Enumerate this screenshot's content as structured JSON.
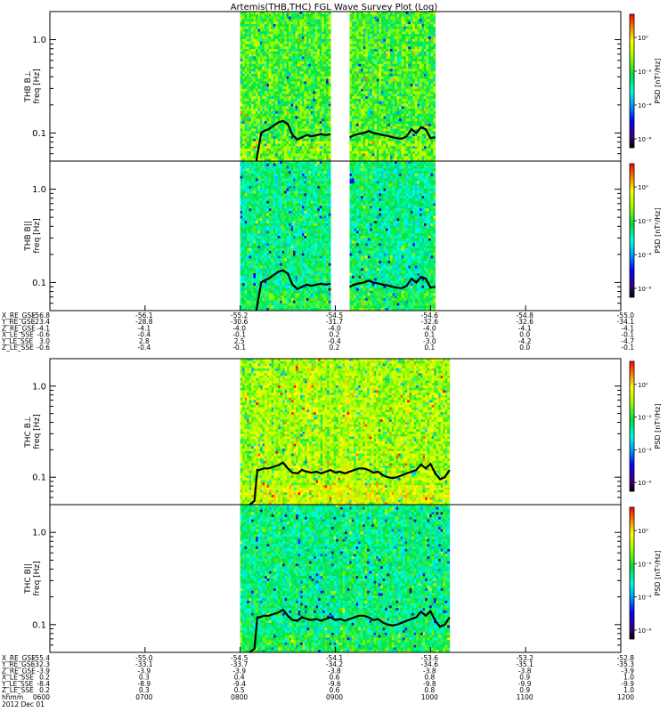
{
  "title": "Artemis(THB,THC) FGL Wave Survey Plot (Log)",
  "chart_data": {
    "type": "heatmap",
    "title": "Artemis(THB,THC) FGL Wave Survey Plot (Log)",
    "x_time_range_hours": [
      6,
      12
    ],
    "panels": [
      {
        "id": "thb-bperp",
        "ylabel": "THB B⊥",
        "yunit": "freq [Hz]",
        "ylim": [
          0.05,
          2.0
        ],
        "yscale": "log",
        "data_intervals": [
          [
            8.0,
            8.95
          ],
          [
            9.15,
            10.05
          ]
        ],
        "bg_level": 0.6,
        "line_level": 0.0
      },
      {
        "id": "thb-bpar",
        "ylabel": "THB B||",
        "yunit": "freq [Hz]",
        "ylim": [
          0.05,
          2.0
        ],
        "yscale": "log",
        "data_intervals": [
          [
            8.0,
            8.95
          ],
          [
            9.15,
            10.05
          ]
        ],
        "bg_level": 0.5,
        "line_level": 0.0
      },
      {
        "id": "thc-bperp",
        "ylabel": "THC B⊥",
        "yunit": "freq [Hz]",
        "ylim": [
          0.05,
          2.0
        ],
        "yscale": "log",
        "data_intervals": [
          [
            8.0,
            10.2
          ]
        ],
        "bg_level": 0.7,
        "line_level": 0.05
      },
      {
        "id": "thc-bpar",
        "ylabel": "THC B||",
        "yunit": "freq [Hz]",
        "ylim": [
          0.05,
          2.0
        ],
        "yscale": "log",
        "data_intervals": [
          [
            8.0,
            10.2
          ]
        ],
        "bg_level": 0.5,
        "line_level": 0.05
      }
    ],
    "thb_line": {
      "x": [
        8.17,
        8.2,
        8.22,
        8.25,
        8.3,
        8.35,
        8.4,
        8.45,
        8.5,
        8.55,
        8.6,
        8.65,
        8.7,
        8.75,
        8.8,
        8.85,
        8.9,
        8.95
      ],
      "y": [
        0.05,
        0.075,
        0.1,
        0.105,
        0.11,
        0.12,
        0.13,
        0.135,
        0.125,
        0.095,
        0.085,
        0.09,
        0.095,
        0.092,
        0.095,
        0.097,
        0.095,
        0.097
      ]
    },
    "thb_line2": {
      "x": [
        9.15,
        9.2,
        9.25,
        9.3,
        9.35,
        9.4,
        9.45,
        9.5,
        9.55,
        9.6,
        9.65,
        9.7,
        9.75,
        9.8,
        9.85,
        9.9,
        9.95,
        10.0,
        10.05
      ],
      "y": [
        0.09,
        0.095,
        0.098,
        0.1,
        0.105,
        0.1,
        0.098,
        0.095,
        0.093,
        0.09,
        0.088,
        0.087,
        0.092,
        0.11,
        0.1,
        0.115,
        0.11,
        0.088,
        0.09
      ]
    },
    "thc_line": {
      "x": [
        8.1,
        8.15,
        8.18,
        8.2,
        8.25,
        8.3,
        8.35,
        8.4,
        8.45,
        8.5,
        8.55,
        8.6,
        8.65,
        8.7,
        8.75,
        8.8,
        8.85,
        8.9,
        8.95,
        9.0,
        9.05,
        9.1,
        9.15,
        9.2,
        9.25,
        9.3,
        9.35,
        9.4,
        9.45,
        9.5,
        9.55,
        9.6,
        9.65,
        9.7,
        9.75,
        9.8,
        9.85,
        9.9,
        9.95,
        10.0,
        10.05,
        10.1,
        10.15,
        10.2
      ],
      "y": [
        0.05,
        0.055,
        0.12,
        0.12,
        0.125,
        0.125,
        0.13,
        0.135,
        0.145,
        0.125,
        0.112,
        0.11,
        0.12,
        0.115,
        0.112,
        0.115,
        0.11,
        0.115,
        0.12,
        0.112,
        0.115,
        0.11,
        0.115,
        0.12,
        0.125,
        0.125,
        0.12,
        0.112,
        0.115,
        0.105,
        0.1,
        0.098,
        0.1,
        0.105,
        0.11,
        0.115,
        0.12,
        0.138,
        0.125,
        0.14,
        0.11,
        0.095,
        0.1,
        0.12
      ]
    },
    "colorbar": {
      "label": "PSD [nT²/Hz]",
      "ticks": [
        "10⁰",
        "10⁻²",
        "10⁻⁴",
        "10⁻⁶"
      ]
    },
    "ytick_labels": [
      "1.0",
      "0.1"
    ],
    "top_ephemeris": {
      "row_labels": [
        "X_RE_GSE",
        "Y_RE_GSE",
        "Z_RE_GSE",
        "X_LE_SSE",
        "Y_LE_SSE",
        "Z_LE_SSE"
      ],
      "columns": [
        [
          "-56.8",
          "-23.4",
          "-4.1",
          "-0.6",
          "3.0",
          "-0.6"
        ],
        [
          "-56.1",
          "-28.8",
          "-4.1",
          "-0.4",
          "2.8",
          "-0.4"
        ],
        [
          "-55.2",
          "-30.6",
          "-4.0",
          "-0.1",
          "2.5",
          "-0.1"
        ],
        [
          "-54.5",
          "-31.7",
          "-4.0",
          "0.2",
          "-0.4",
          "0.2"
        ],
        [
          "-54.6",
          "-32.6",
          "-4.0",
          "0.1",
          "-3.0",
          "0.1"
        ],
        [
          "-54.8",
          "-32.6",
          "-4.1",
          "0.0",
          "-4.2",
          "0.0"
        ],
        [
          "-55.0",
          "-34.1",
          "-4.1",
          "-0.1",
          "-4.7",
          "-0.1"
        ]
      ]
    },
    "bottom_ephemeris": {
      "row_labels": [
        "X_RE_GSE",
        "Y_RE_GSE",
        "Z_RE_GSE",
        "X_LE_SSE",
        "Y_LE_SSE",
        "Z_LE_SSE"
      ],
      "columns": [
        [
          "-55.4",
          "-32.3",
          "-3.9",
          "0.2",
          "-8.4",
          "0.2"
        ],
        [
          "-55.0",
          "-33.1",
          "-3.9",
          "0.3",
          "-8.9",
          "0.3"
        ],
        [
          "-54.5",
          "-33.7",
          "-3.9",
          "0.4",
          "-9.4",
          "0.5"
        ],
        [
          "-54.1",
          "-34.2",
          "-3.8",
          "0.6",
          "-9.6",
          "0.6"
        ],
        [
          "-53.6",
          "-34.6",
          "-3.8",
          "0.8",
          "-9.8",
          "0.8"
        ],
        [
          "-53.2",
          "-35.1",
          "-3.8",
          "0.9",
          "-9.9",
          "0.9"
        ],
        [
          "-52.8",
          "-35.3",
          "-3.9",
          "1.0",
          "-9.9",
          "1.0"
        ]
      ]
    },
    "time_row_label": "hhmm",
    "date_label": "2012 Dec 01",
    "time_ticks": [
      "0600",
      "0700",
      "0800",
      "0900",
      "1000",
      "1100",
      "1200"
    ]
  }
}
